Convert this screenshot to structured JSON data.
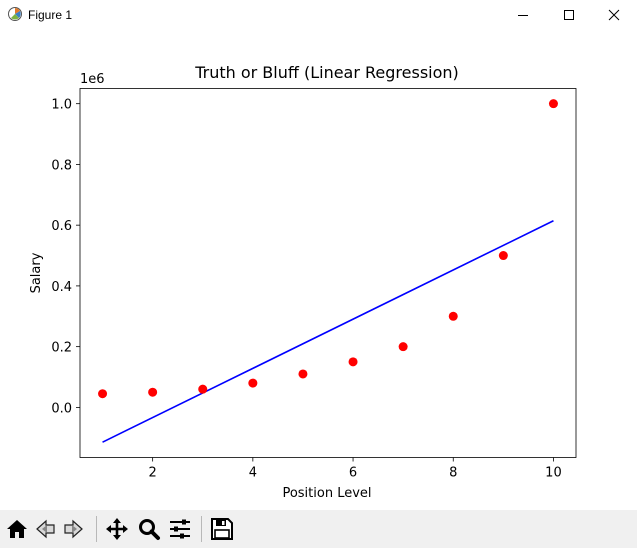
{
  "window": {
    "title": "Figure 1"
  },
  "icons": {
    "app": "matplotlib-figure-icon",
    "minimize": "minimize-icon",
    "maximize": "maximize-icon",
    "close": "close-icon",
    "home": "home-icon",
    "back": "back-arrow-icon",
    "forward": "forward-arrow-icon",
    "pan": "pan-move-icon",
    "zoom": "zoom-magnifier-icon",
    "configure": "configure-subplots-icon",
    "save": "save-floppy-icon"
  },
  "chart_data": {
    "type": "scatter",
    "title": "Truth or Bluff (Linear Regression)",
    "xlabel": "Position Level",
    "ylabel": "Salary",
    "offset_text": "1e6",
    "xlim": [
      0.55,
      10.45
    ],
    "ylim": [
      -0.165,
      1.05
    ],
    "x_ticks": [
      2,
      4,
      6,
      8,
      10
    ],
    "y_ticks": [
      0.0,
      0.2,
      0.4,
      0.6,
      0.8,
      1.0
    ],
    "y_tick_labels": [
      "0.0",
      "0.2",
      "0.4",
      "0.6",
      "0.8",
      "1.0"
    ],
    "grid": false,
    "scatter": {
      "color": "#ff0000",
      "x": [
        1,
        2,
        3,
        4,
        5,
        6,
        7,
        8,
        9,
        10
      ],
      "y": [
        0.045,
        0.05,
        0.06,
        0.08,
        0.11,
        0.15,
        0.2,
        0.3,
        0.5,
        1.0
      ]
    },
    "line": {
      "color": "#0000ff",
      "x": [
        1,
        10
      ],
      "y": [
        -0.1145,
        0.6145
      ]
    }
  }
}
